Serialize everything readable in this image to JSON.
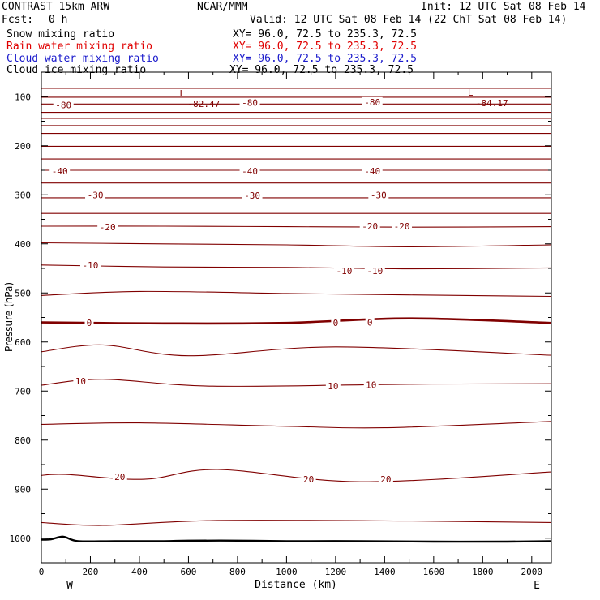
{
  "header": {
    "model": "CONTRAST 15km ARW",
    "org": "NCAR/MMM",
    "init": "Init: 12 UTC Sat 08 Feb 14",
    "fcst_label": "Fcst:",
    "fcst_value": "0 h",
    "valid": "Valid: 12 UTC Sat 08 Feb 14 (22 ChT Sat 08 Feb 14)"
  },
  "fields": [
    {
      "name": "Snow mixing ratio",
      "xy": "XY=  96.0, 72.5 to 235.3, 72.5",
      "color": "#000000"
    },
    {
      "name": "Rain water mixing ratio",
      "xy": "XY=  96.0, 72.5 to 235.3, 72.5",
      "color": "#e00000"
    },
    {
      "name": "Cloud water mixing ratio",
      "xy": "XY=  96.0, 72.5 to 235.3, 72.5",
      "color": "#1a1acc"
    },
    {
      "name": "Cloud ice mixing ratio",
      "xy": "XY=  96.0, 72.5 to 235.3, 72.5",
      "color": "#000000"
    }
  ],
  "chart_data": {
    "type": "line",
    "title": "",
    "xlabel": "Distance (km)",
    "ylabel": "Pressure (hPa)",
    "xlim": [
      0,
      2080
    ],
    "ylim": [
      50,
      1050
    ],
    "xticks": [
      0,
      200,
      400,
      600,
      800,
      1000,
      1200,
      1400,
      1600,
      1800,
      2000
    ],
    "yticks": [
      100,
      200,
      300,
      400,
      500,
      600,
      700,
      800,
      900,
      1000
    ],
    "x_end_labels": {
      "left": "W",
      "right": "E"
    },
    "contour_color": "#800000",
    "contour_interval_degC": 5,
    "temperature_contours": [
      {
        "pressure": [
          64,
          64,
          64,
          64,
          64
        ],
        "x": [
          0,
          500,
          1000,
          1500,
          2080
        ]
      },
      {
        "pressure": [
          83,
          83,
          83,
          83,
          83
        ],
        "x": [
          0,
          500,
          1000,
          1500,
          2080
        ]
      },
      {
        "pressure": [
          101,
          101,
          101,
          101,
          101
        ],
        "x": [
          0,
          500,
          1000,
          1500,
          2080
        ]
      },
      {
        "pressure": [
          115,
          115,
          115,
          115,
          115
        ],
        "x": [
          0,
          500,
          1000,
          1500,
          2080
        ]
      },
      {
        "pressure": [
          132,
          132,
          132,
          132,
          132
        ],
        "x": [
          0,
          500,
          1000,
          1500,
          2080
        ]
      },
      {
        "pressure": [
          144,
          144,
          144,
          144,
          144
        ],
        "x": [
          0,
          500,
          1000,
          1500,
          2080
        ]
      },
      {
        "pressure": [
          159,
          159,
          159,
          159,
          159
        ],
        "x": [
          0,
          500,
          1000,
          1500,
          2080
        ]
      },
      {
        "pressure": [
          175,
          175,
          175,
          175,
          175
        ],
        "x": [
          0,
          500,
          1000,
          1500,
          2080
        ]
      },
      {
        "pressure": [
          201,
          201,
          201,
          201,
          201
        ],
        "x": [
          0,
          500,
          1000,
          1500,
          2080
        ]
      },
      {
        "pressure": [
          227,
          227,
          227,
          227,
          227
        ],
        "x": [
          0,
          500,
          1000,
          1500,
          2080
        ]
      },
      {
        "pressure": [
          250,
          250,
          250,
          250,
          250
        ],
        "x": [
          0,
          500,
          1000,
          1500,
          2080
        ]
      },
      {
        "pressure": [
          276,
          276,
          276,
          276,
          276
        ],
        "x": [
          0,
          500,
          1000,
          1500,
          2080
        ]
      },
      {
        "pressure": [
          306,
          306,
          306,
          306,
          306
        ],
        "x": [
          0,
          500,
          1000,
          1500,
          2080
        ]
      },
      {
        "pressure": [
          338,
          338,
          338,
          338,
          338
        ],
        "x": [
          0,
          500,
          1000,
          1500,
          2080
        ]
      },
      {
        "pressure": [
          364,
          364,
          365,
          366,
          365
        ],
        "x": [
          0,
          500,
          1000,
          1500,
          2080
        ]
      },
      {
        "pressure": [
          398,
          400,
          402,
          406,
          402
        ],
        "x": [
          0,
          500,
          1000,
          1500,
          2080
        ]
      },
      {
        "pressure": [
          443,
          447,
          448,
          451,
          449
        ],
        "x": [
          0,
          500,
          1000,
          1500,
          2080
        ]
      },
      {
        "pressure": [
          505,
          497,
          501,
          504,
          507
        ],
        "x": [
          0,
          400,
          1000,
          1500,
          2080
        ]
      },
      {
        "pressure": [
          560,
          562,
          561,
          552,
          561
        ],
        "x": [
          0,
          500,
          1000,
          1500,
          2080
        ]
      },
      {
        "pressure": [
          620,
          606,
          628,
          610,
          627
        ],
        "x": [
          0,
          250,
          600,
          1200,
          2080
        ]
      },
      {
        "pressure": [
          688,
          676,
          690,
          686,
          685
        ],
        "x": [
          0,
          250,
          700,
          1500,
          2080
        ]
      },
      {
        "pressure": [
          768,
          765,
          772,
          775,
          762
        ],
        "x": [
          0,
          400,
          1000,
          1400,
          2080
        ]
      },
      {
        "pressure": [
          872,
          870,
          880,
          860,
          885,
          865
        ],
        "x": [
          0,
          100,
          420,
          720,
          1300,
          2080
        ]
      },
      {
        "pressure": [
          968,
          974,
          964,
          965,
          968
        ],
        "x": [
          0,
          250,
          700,
          1500,
          2080
        ]
      }
    ],
    "freezing_level": {
      "value_degC": 0
    },
    "contour_labels": [
      {
        "text": "-80",
        "x": 90,
        "p": 117
      },
      {
        "text": "-80",
        "x": 850,
        "p": 112
      },
      {
        "text": "-80",
        "x": 1350,
        "p": 111
      },
      {
        "text": "-40",
        "x": 75,
        "p": 252
      },
      {
        "text": "-40",
        "x": 850,
        "p": 252
      },
      {
        "text": "-40",
        "x": 1350,
        "p": 252
      },
      {
        "text": "-30",
        "x": 220,
        "p": 300
      },
      {
        "text": "-30",
        "x": 860,
        "p": 301
      },
      {
        "text": "-30",
        "x": 1375,
        "p": 300
      },
      {
        "text": "-20",
        "x": 270,
        "p": 366
      },
      {
        "text": "-20",
        "x": 1340,
        "p": 364
      },
      {
        "text": "-20",
        "x": 1470,
        "p": 364
      },
      {
        "text": "-10",
        "x": 200,
        "p": 443
      },
      {
        "text": "-10",
        "x": 1235,
        "p": 455
      },
      {
        "text": "-10",
        "x": 1360,
        "p": 455
      },
      {
        "text": "0",
        "x": 195,
        "p": 561
      },
      {
        "text": "0",
        "x": 1200,
        "p": 561
      },
      {
        "text": "0",
        "x": 1340,
        "p": 560
      },
      {
        "text": "10",
        "x": 160,
        "p": 680
      },
      {
        "text": "10",
        "x": 1190,
        "p": 690
      },
      {
        "text": "10",
        "x": 1345,
        "p": 687
      },
      {
        "text": "20",
        "x": 320,
        "p": 875
      },
      {
        "text": "20",
        "x": 1090,
        "p": 880
      },
      {
        "text": "20",
        "x": 1405,
        "p": 880
      }
    ],
    "extrema": [
      {
        "symbol": "L",
        "value": "-82.47",
        "x": 630,
        "p": 85
      },
      {
        "symbol": "L",
        "value": "-84.17",
        "x": 1805,
        "p": 83
      }
    ],
    "terrain": {
      "pressure": [
        1003,
        1002,
        997,
        1006,
        1006,
        1006,
        1005,
        1005,
        1006,
        1006,
        1007,
        1007,
        1006
      ],
      "x": [
        0,
        40,
        90,
        150,
        300,
        500,
        600,
        800,
        1000,
        1300,
        1600,
        1900,
        2080
      ]
    }
  }
}
